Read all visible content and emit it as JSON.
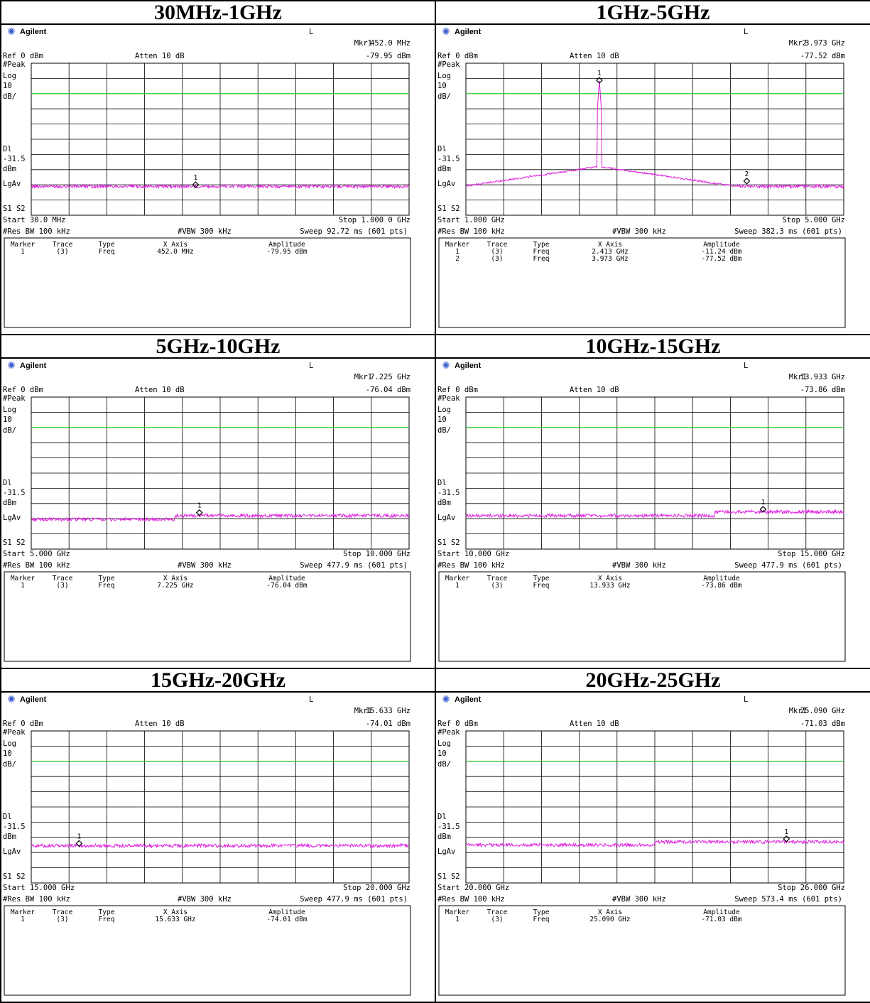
{
  "page_title": "",
  "instrument": {
    "brand": "Agilent",
    "remote_flag": "L"
  },
  "common": {
    "ref_level": "Ref 0 dBm",
    "attenuation": "Atten 10 dB",
    "detector": "#Peak",
    "scale_type": "Log",
    "scale_value": "10",
    "scale_unit": "dB/",
    "display_line_label": "Dl",
    "display_line_value": "-31.5",
    "display_line_unit": "dBm",
    "averaging": "LgAv",
    "sweep_labels": "S1  S2",
    "rbw": "#Res BW 100 kHz",
    "vbw": "#VBW 300 kHz",
    "table_headers": [
      "Marker",
      "Trace",
      "Type",
      "X Axis",
      "Amplitude"
    ]
  },
  "colors": {
    "trace": "#e020e0",
    "display_line": "#22dd22",
    "grid": "#000000"
  },
  "panels": [
    {
      "title": "30MHz-1GHz",
      "mkr_label": "Mkr1",
      "mkr_freq": "452.0 MHz",
      "mkr_amp": "-79.95 dBm",
      "start": "Start 30.0 MHz",
      "stop": "Stop 1.000 0 GHz",
      "sweep": "Sweep 92.72 ms (601 pts)",
      "markers": [
        {
          "num": "1",
          "trace": "(3)",
          "type": "Freq",
          "x": "452.0 MHz",
          "amp": "-79.95 dBm"
        }
      ]
    },
    {
      "title": "1GHz-5GHz",
      "mkr_label": "Mkr2",
      "mkr_freq": "3.973 GHz",
      "mkr_amp": "-77.52 dBm",
      "start": "Start 1.000 GHz",
      "stop": "Stop 5.000 GHz",
      "sweep": "Sweep 382.3 ms (601 pts)",
      "markers": [
        {
          "num": "1",
          "trace": "(3)",
          "type": "Freq",
          "x": "2.413 GHz",
          "amp": "-11.24 dBm"
        },
        {
          "num": "2",
          "trace": "(3)",
          "type": "Freq",
          "x": "3.973 GHz",
          "amp": "-77.52 dBm"
        }
      ]
    },
    {
      "title": "5GHz-10GHz",
      "mkr_label": "Mkr1",
      "mkr_freq": "7.225 GHz",
      "mkr_amp": "-76.04 dBm",
      "start": "Start 5.000 GHz",
      "stop": "Stop 10.000 GHz",
      "sweep": "Sweep 477.9 ms (601 pts)",
      "markers": [
        {
          "num": "1",
          "trace": "(3)",
          "type": "Freq",
          "x": "7.225 GHz",
          "amp": "-76.04 dBm"
        }
      ]
    },
    {
      "title": "10GHz-15GHz",
      "mkr_label": "Mkr1",
      "mkr_freq": "13.933 GHz",
      "mkr_amp": "-73.86 dBm",
      "start": "Start 10.000 GHz",
      "stop": "Stop 15.000 GHz",
      "sweep": "Sweep 477.9 ms (601 pts)",
      "markers": [
        {
          "num": "1",
          "trace": "(3)",
          "type": "Freq",
          "x": "13.933 GHz",
          "amp": "-73.86 dBm"
        }
      ]
    },
    {
      "title": "15GHz-20GHz",
      "mkr_label": "Mkr1",
      "mkr_freq": "15.633 GHz",
      "mkr_amp": "-74.01 dBm",
      "start": "Start 15.000 GHz",
      "stop": "Stop 20.000 GHz",
      "sweep": "Sweep 477.9 ms (601 pts)",
      "markers": [
        {
          "num": "1",
          "trace": "(3)",
          "type": "Freq",
          "x": "15.633 GHz",
          "amp": "-74.01 dBm"
        }
      ]
    },
    {
      "title": "20GHz-25GHz",
      "mkr_label": "Mkr1",
      "mkr_freq": "25.090 GHz",
      "mkr_amp": "-71.03 dBm",
      "start": "Start 20.000 GHz",
      "stop": "Stop 26.000 GHz",
      "sweep": "Sweep 573.4 ms (601 pts)",
      "markers": [
        {
          "num": "1",
          "trace": "(3)",
          "type": "Freq",
          "x": "25.090 GHz",
          "amp": "-71.03 dBm"
        }
      ]
    }
  ],
  "chart_data": [
    {
      "type": "line",
      "title": "30MHz-1GHz",
      "x_unit": "GHz",
      "y_unit": "dBm",
      "xlim": [
        0.03,
        1.0
      ],
      "ylim": [
        -100,
        0
      ],
      "grid": true,
      "display_line": -31.5,
      "noise_floor": -81,
      "features": [],
      "markers": [
        {
          "id": 1,
          "x": 0.452,
          "y": -79.95
        }
      ]
    },
    {
      "type": "line",
      "title": "1GHz-5GHz",
      "x_unit": "GHz",
      "y_unit": "dBm",
      "xlim": [
        1.0,
        5.0
      ],
      "ylim": [
        -100,
        0
      ],
      "grid": true,
      "display_line": -31.5,
      "noise_floor": -81,
      "features": [
        {
          "kind": "carrier",
          "x": 2.413,
          "y": -11.24,
          "skirt": -68
        }
      ],
      "markers": [
        {
          "id": 1,
          "x": 2.413,
          "y": -11.24
        },
        {
          "id": 2,
          "x": 3.973,
          "y": -77.52
        }
      ]
    },
    {
      "type": "line",
      "title": "5GHz-10GHz",
      "x_unit": "GHz",
      "y_unit": "dBm",
      "xlim": [
        5.0,
        10.0
      ],
      "ylim": [
        -100,
        0
      ],
      "grid": true,
      "display_line": -31.5,
      "noise_floor": -80.5,
      "features": [
        {
          "kind": "step",
          "x": 6.9,
          "y": -78
        }
      ],
      "markers": [
        {
          "id": 1,
          "x": 7.225,
          "y": -76.04
        }
      ]
    },
    {
      "type": "line",
      "title": "10GHz-15GHz",
      "x_unit": "GHz",
      "y_unit": "dBm",
      "xlim": [
        10.0,
        15.0
      ],
      "ylim": [
        -100,
        0
      ],
      "grid": true,
      "display_line": -31.5,
      "noise_floor": -78,
      "features": [
        {
          "kind": "step",
          "x": 13.3,
          "y": -75.5
        }
      ],
      "markers": [
        {
          "id": 1,
          "x": 13.933,
          "y": -73.86
        }
      ]
    },
    {
      "type": "line",
      "title": "15GHz-20GHz",
      "x_unit": "GHz",
      "y_unit": "dBm",
      "xlim": [
        15.0,
        20.0
      ],
      "ylim": [
        -100,
        0
      ],
      "grid": true,
      "display_line": -31.5,
      "noise_floor": -75.5,
      "features": [],
      "markers": [
        {
          "id": 1,
          "x": 15.633,
          "y": -74.01
        }
      ]
    },
    {
      "type": "line",
      "title": "20GHz-25GHz",
      "x_unit": "GHz",
      "y_unit": "dBm",
      "xlim": [
        20.0,
        26.0
      ],
      "ylim": [
        -100,
        0
      ],
      "grid": true,
      "display_line": -31.5,
      "noise_floor": -75,
      "features": [
        {
          "kind": "step",
          "x": 23.0,
          "y": -73
        }
      ],
      "markers": [
        {
          "id": 1,
          "x": 25.09,
          "y": -71.03
        }
      ]
    }
  ]
}
